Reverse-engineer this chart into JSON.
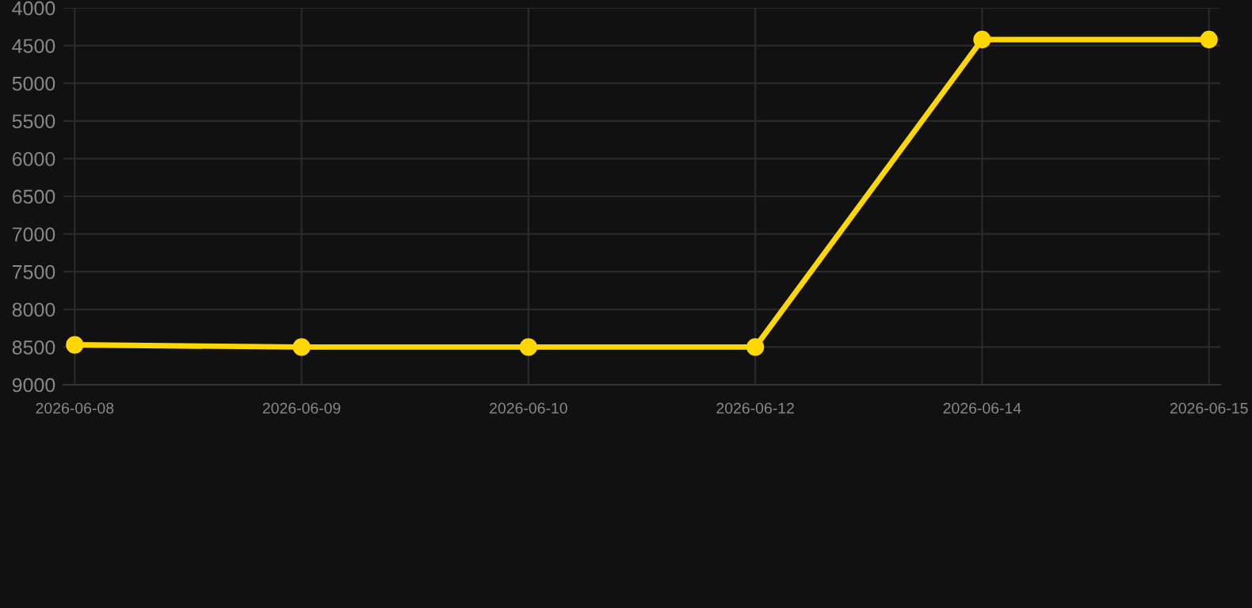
{
  "chart_data": {
    "type": "line",
    "categories": [
      "2026-06-08",
      "2026-06-09",
      "2026-06-10",
      "2026-06-12",
      "2026-06-14",
      "2026-06-15"
    ],
    "series": [
      {
        "color": "#ffd700",
        "values": [
          8470,
          8500,
          8500,
          8500,
          4420,
          4420
        ]
      }
    ],
    "ylim": [
      9000,
      4000
    ],
    "yticks": [
      4000,
      4500,
      5000,
      5500,
      6000,
      6500,
      7000,
      7500,
      8000,
      8500,
      9000
    ],
    "grid": true,
    "marker": "circle",
    "line_style": "solid"
  }
}
